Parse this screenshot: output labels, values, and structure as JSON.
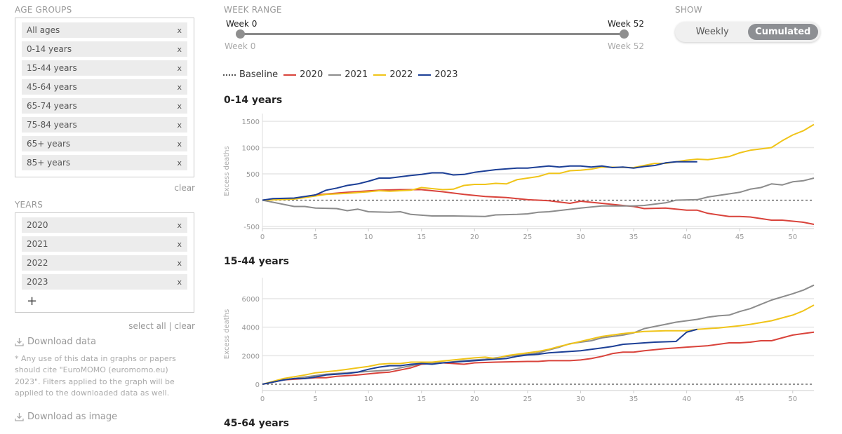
{
  "filters": {
    "age_groups_label": "AGE GROUPS",
    "age_groups": [
      "All ages",
      "0-14 years",
      "15-44 years",
      "45-64 years",
      "65-74 years",
      "75-84 years",
      "65+ years",
      "85+ years"
    ],
    "age_clear": "clear",
    "years_label": "YEARS",
    "years": [
      "2020",
      "2021",
      "2022",
      "2023"
    ],
    "add_icon": "+",
    "remove_icon": "x",
    "select_all": "select all",
    "separator": "|",
    "years_clear": "clear",
    "download_data": "Download data",
    "note": "* Any use of this data in graphs or papers should cite \"EuroMOMO (euromomo.eu) 2023\". Filters applied to the graph will be applied to the downloaded data as well.",
    "download_image": "Download as image"
  },
  "week_range": {
    "label": "WEEK RANGE",
    "min_label": "Week 0",
    "max_label": "Week 52",
    "min_value_label": "Week 0",
    "max_value_label": "Week 52",
    "min": 0,
    "max": 52
  },
  "show": {
    "label": "SHOW",
    "options": [
      "Weekly",
      "Cumulated"
    ],
    "selected": "Cumulated"
  },
  "legend": {
    "baseline": "Baseline",
    "series": [
      {
        "name": "2020",
        "color": "#d9433b"
      },
      {
        "name": "2021",
        "color": "#8c8c8c"
      },
      {
        "name": "2022",
        "color": "#f0c419"
      },
      {
        "name": "2023",
        "color": "#1c3f96"
      }
    ]
  },
  "chart_data": [
    {
      "type": "line",
      "title": "0-14 years",
      "ylabel": "Excess deaths",
      "xlabel": "",
      "xlim": [
        0,
        52
      ],
      "ylim": [
        -500,
        1500
      ],
      "grid": true,
      "xticks": [
        0,
        5,
        10,
        15,
        20,
        25,
        30,
        35,
        40,
        45,
        50
      ],
      "yticks": [
        -500,
        0,
        500,
        1000,
        1500
      ],
      "baseline": 0,
      "series": [
        {
          "name": "2020",
          "x": [
            0,
            3,
            5,
            8,
            11,
            13,
            15,
            17,
            19,
            21,
            23,
            25,
            27,
            29,
            30,
            32,
            35,
            36,
            38,
            40,
            41,
            42,
            44,
            45,
            46,
            48,
            49,
            51,
            52
          ],
          "y": [
            0,
            30,
            100,
            150,
            190,
            200,
            200,
            160,
            110,
            70,
            50,
            10,
            -10,
            -60,
            -20,
            -60,
            -120,
            -160,
            -150,
            -190,
            -190,
            -250,
            -310,
            -310,
            -320,
            -380,
            -380,
            -420,
            -460
          ]
        },
        {
          "name": "2021",
          "x": [
            0,
            3,
            4,
            5,
            7,
            8,
            9,
            10,
            12,
            13,
            14,
            16,
            18,
            21,
            22,
            24,
            25,
            26,
            27,
            30,
            32,
            35,
            36,
            38,
            39,
            41,
            42,
            44,
            45,
            46,
            47,
            48,
            49,
            50,
            51,
            52
          ],
          "y": [
            0,
            -120,
            -120,
            -150,
            -160,
            -200,
            -170,
            -220,
            -230,
            -220,
            -270,
            -300,
            -300,
            -310,
            -280,
            -270,
            -260,
            -230,
            -220,
            -150,
            -110,
            -110,
            -100,
            -50,
            0,
            10,
            60,
            120,
            150,
            210,
            240,
            310,
            290,
            350,
            370,
            420
          ]
        },
        {
          "name": "2022",
          "x": [
            0,
            3,
            5,
            6,
            8,
            10,
            11,
            12,
            14,
            15,
            17,
            18,
            19,
            20,
            21,
            22,
            23,
            24,
            25,
            26,
            27,
            28,
            29,
            30,
            31,
            32,
            35,
            37,
            38,
            40,
            41,
            42,
            44,
            45,
            46,
            48,
            49,
            50,
            51,
            52
          ],
          "y": [
            0,
            20,
            80,
            110,
            130,
            160,
            180,
            170,
            190,
            240,
            200,
            210,
            280,
            300,
            300,
            320,
            310,
            390,
            420,
            450,
            510,
            510,
            560,
            570,
            590,
            630,
            620,
            700,
            700,
            760,
            780,
            770,
            830,
            900,
            950,
            1000,
            1130,
            1240,
            1320,
            1440
          ]
        },
        {
          "name": "2023",
          "x": [
            0,
            1,
            3,
            5,
            6,
            7,
            8,
            9,
            10,
            11,
            12,
            14,
            15,
            16,
            17,
            18,
            19,
            20,
            22,
            24,
            25,
            27,
            28,
            29,
            30,
            31,
            32,
            33,
            34,
            35,
            36,
            37,
            38,
            39,
            40,
            41
          ],
          "y": [
            0,
            30,
            40,
            100,
            190,
            230,
            280,
            310,
            360,
            420,
            420,
            470,
            490,
            520,
            520,
            480,
            490,
            530,
            580,
            610,
            610,
            650,
            630,
            650,
            650,
            630,
            650,
            620,
            630,
            610,
            640,
            660,
            710,
            730,
            730,
            730
          ]
        }
      ]
    },
    {
      "type": "line",
      "title": "15-44 years",
      "ylabel": "Excess deaths",
      "xlabel": "",
      "xlim": [
        0,
        52
      ],
      "ylim": [
        0,
        7000
      ],
      "grid": true,
      "xticks": [
        0,
        5,
        10,
        15,
        20,
        25,
        30,
        35,
        40,
        45,
        50
      ],
      "yticks": [
        0,
        2000,
        4000,
        6000
      ],
      "baseline": 0,
      "series": [
        {
          "name": "2020",
          "x": [
            0,
            2,
            4,
            5,
            6,
            7,
            9,
            11,
            12,
            13,
            14,
            15,
            17,
            19,
            20,
            22,
            25,
            26,
            27,
            29,
            30,
            31,
            32,
            33,
            34,
            35,
            36,
            38,
            39,
            40,
            41,
            42,
            44,
            45,
            46,
            47,
            48,
            49,
            50,
            51,
            52
          ],
          "y": [
            0,
            300,
            400,
            450,
            450,
            550,
            650,
            800,
            850,
            1000,
            1150,
            1400,
            1500,
            1400,
            1500,
            1550,
            1600,
            1600,
            1650,
            1650,
            1700,
            1800,
            1950,
            2150,
            2250,
            2250,
            2350,
            2500,
            2550,
            2600,
            2650,
            2700,
            2900,
            2900,
            2950,
            3050,
            3050,
            3250,
            3450,
            3550,
            3650
          ]
        },
        {
          "name": "2021",
          "x": [
            0,
            2,
            4,
            6,
            8,
            10,
            12,
            14,
            15,
            17,
            19,
            21,
            23,
            25,
            26,
            27,
            28,
            29,
            30,
            31,
            32,
            34,
            35,
            36,
            37,
            38,
            39,
            40,
            41,
            42,
            43,
            44,
            45,
            46,
            47,
            48,
            50,
            51,
            52
          ],
          "y": [
            0,
            300,
            500,
            700,
            800,
            900,
            1000,
            1300,
            1450,
            1500,
            1650,
            1750,
            1950,
            2100,
            2200,
            2400,
            2600,
            2850,
            2950,
            3050,
            3250,
            3450,
            3600,
            3900,
            4050,
            4200,
            4350,
            4450,
            4550,
            4700,
            4800,
            4850,
            5100,
            5300,
            5600,
            5900,
            6350,
            6600,
            6950
          ]
        },
        {
          "name": "2022",
          "x": [
            0,
            2,
            4,
            5,
            7,
            8,
            10,
            11,
            12,
            13,
            14,
            16,
            18,
            20,
            21,
            22,
            23,
            25,
            26,
            27,
            28,
            30,
            32,
            34,
            36,
            38,
            40,
            41,
            43,
            45,
            46,
            48,
            50,
            51,
            52
          ],
          "y": [
            0,
            400,
            650,
            800,
            950,
            1050,
            1250,
            1400,
            1450,
            1450,
            1550,
            1550,
            1700,
            1850,
            1900,
            1800,
            2000,
            2200,
            2300,
            2450,
            2650,
            3000,
            3350,
            3550,
            3700,
            3750,
            3750,
            3850,
            3950,
            4100,
            4200,
            4450,
            4850,
            5150,
            5550
          ]
        },
        {
          "name": "2023",
          "x": [
            0,
            2,
            3,
            4,
            5,
            6,
            8,
            9,
            10,
            11,
            12,
            13,
            14,
            15,
            16,
            17,
            19,
            21,
            23,
            24,
            25,
            26,
            27,
            28,
            30,
            31,
            32,
            33,
            34,
            35,
            36,
            37,
            39,
            40,
            41
          ],
          "y": [
            0,
            300,
            400,
            400,
            500,
            650,
            750,
            850,
            1050,
            1200,
            1300,
            1300,
            1400,
            1450,
            1400,
            1500,
            1600,
            1700,
            1800,
            1950,
            2050,
            2100,
            2200,
            2250,
            2350,
            2450,
            2550,
            2650,
            2800,
            2850,
            2900,
            2950,
            3000,
            3650,
            3850
          ]
        }
      ]
    }
  ],
  "next_chart_title": "45-64 years"
}
